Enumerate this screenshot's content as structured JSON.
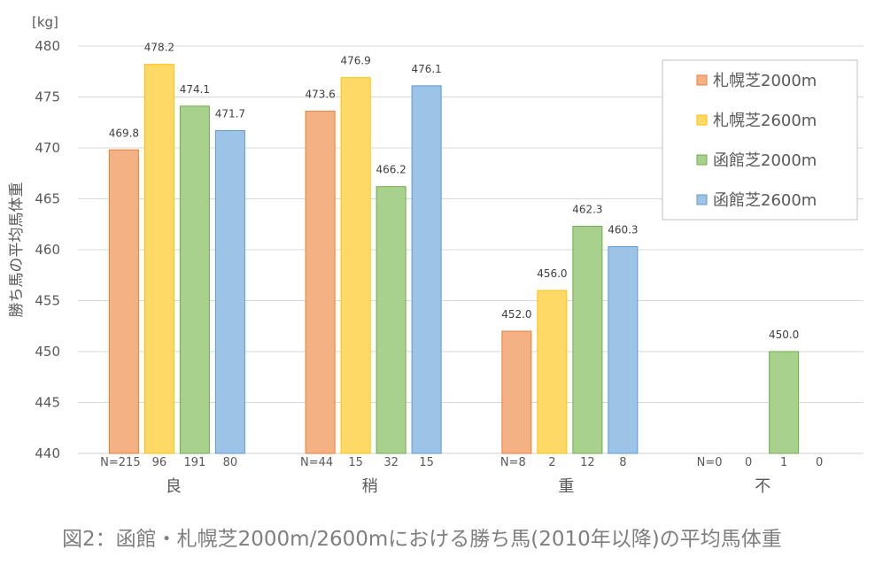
{
  "chart_data": {
    "type": "bar",
    "title": "",
    "caption": "図2：函館・札幌芝2000m/2600mにおける勝ち馬(2010年以降)の平均馬体重",
    "ylabel": "勝ち馬の平均馬体重",
    "yunit": "[kg]",
    "ylim": [
      440,
      480
    ],
    "yticks": [
      440,
      445,
      450,
      455,
      460,
      465,
      470,
      475,
      480
    ],
    "grid": true,
    "legend_position": "top-right",
    "categories": [
      "良",
      "稍",
      "重",
      "不"
    ],
    "series": [
      {
        "name": "札幌芝2000m",
        "color": "#F4B183",
        "stroke": "#ED7D31",
        "values": [
          469.8,
          473.6,
          452.0,
          null
        ],
        "labels": [
          "469.8",
          "473.6",
          "452.0",
          ""
        ],
        "n": [
          "N=215",
          "N=44",
          "N=8",
          "N=0"
        ]
      },
      {
        "name": "札幌芝2600m",
        "color": "#FFD966",
        "stroke": "#FFC000",
        "values": [
          478.2,
          476.9,
          456.0,
          null
        ],
        "labels": [
          "478.2",
          "476.9",
          "456.0",
          ""
        ],
        "n": [
          "96",
          "15",
          "2",
          "0"
        ]
      },
      {
        "name": "函館芝2000m",
        "color": "#A9D18E",
        "stroke": "#70AD47",
        "values": [
          474.1,
          466.2,
          462.3,
          450.0
        ],
        "labels": [
          "474.1",
          "466.2",
          "462.3",
          "450.0"
        ],
        "n": [
          "191",
          "32",
          "12",
          "1"
        ]
      },
      {
        "name": "函館芝2600m",
        "color": "#9DC3E6",
        "stroke": "#5B9BD5",
        "values": [
          471.7,
          476.1,
          460.3,
          null
        ],
        "labels": [
          "471.7",
          "476.1",
          "460.3",
          ""
        ],
        "n": [
          "80",
          "15",
          "8",
          "0"
        ]
      }
    ]
  }
}
